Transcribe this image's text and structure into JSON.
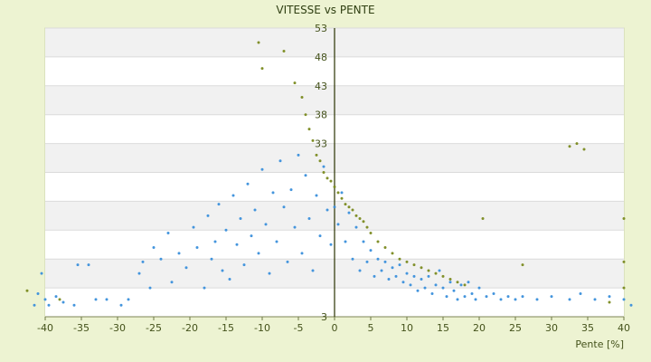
{
  "chart_data": {
    "type": "scatter",
    "title": "VITESSE vs PENTE",
    "xlabel": "Pente [%]",
    "ylabel": "",
    "xlim": [
      -40,
      40
    ],
    "ylim": [
      3,
      53
    ],
    "x_ticks": [
      -40,
      -35,
      -30,
      -25,
      -20,
      -15,
      -10,
      -5,
      0,
      5,
      10,
      15,
      20,
      25,
      30,
      35,
      40
    ],
    "y_ticks": [
      3,
      8,
      13,
      18,
      23,
      28,
      33,
      38,
      43,
      48,
      53
    ],
    "y_tick_labels": [
      "3",
      "",
      "",
      "",
      "",
      "",
      "33",
      "38",
      "43",
      "48",
      "53"
    ],
    "grid": true,
    "band_fill_colors": [
      "#ffffff",
      "#f1f1f1"
    ],
    "series": [
      {
        "color": "#3a8fdb",
        "points": [
          [
            -41.5,
            5.0
          ],
          [
            -41.0,
            7.0
          ],
          [
            -40.5,
            10.5
          ],
          [
            -40.0,
            6.0
          ],
          [
            -39.5,
            5.0
          ],
          [
            -38.5,
            6.5
          ],
          [
            -37.5,
            5.5
          ],
          [
            -36.0,
            5.0
          ],
          [
            -35.5,
            12.0
          ],
          [
            -34.0,
            12.0
          ],
          [
            -33.0,
            6.0
          ],
          [
            -31.5,
            6.0
          ],
          [
            -29.5,
            5.0
          ],
          [
            -28.5,
            6.0
          ],
          [
            -27.0,
            10.5
          ],
          [
            -26.5,
            12.5
          ],
          [
            -25.5,
            8.0
          ],
          [
            -25.0,
            15.0
          ],
          [
            -24.0,
            13.0
          ],
          [
            -23.0,
            17.5
          ],
          [
            -22.5,
            9.0
          ],
          [
            -21.5,
            14.0
          ],
          [
            -20.5,
            11.5
          ],
          [
            -19.5,
            18.5
          ],
          [
            -19.0,
            15.0
          ],
          [
            -18.0,
            8.0
          ],
          [
            -17.5,
            20.5
          ],
          [
            -17.0,
            13.0
          ],
          [
            -16.5,
            16.0
          ],
          [
            -16.0,
            22.5
          ],
          [
            -15.5,
            11.0
          ],
          [
            -15.0,
            18.0
          ],
          [
            -14.5,
            9.5
          ],
          [
            -14.0,
            24.0
          ],
          [
            -13.5,
            15.5
          ],
          [
            -13.0,
            20.0
          ],
          [
            -12.5,
            12.0
          ],
          [
            -12.0,
            26.0
          ],
          [
            -11.5,
            17.0
          ],
          [
            -11.0,
            21.5
          ],
          [
            -10.5,
            14.0
          ],
          [
            -10.0,
            28.5
          ],
          [
            -9.5,
            19.0
          ],
          [
            -9.0,
            10.5
          ],
          [
            -8.5,
            24.5
          ],
          [
            -8.0,
            16.0
          ],
          [
            -7.5,
            30.0
          ],
          [
            -7.0,
            22.0
          ],
          [
            -6.5,
            12.5
          ],
          [
            -6.0,
            25.0
          ],
          [
            -5.5,
            18.5
          ],
          [
            -5.0,
            31.0
          ],
          [
            -4.5,
            14.0
          ],
          [
            -4.0,
            27.5
          ],
          [
            -3.5,
            20.0
          ],
          [
            -3.0,
            11.0
          ],
          [
            -2.5,
            24.0
          ],
          [
            -2.0,
            17.0
          ],
          [
            -1.5,
            29.0
          ],
          [
            -1.0,
            21.5
          ],
          [
            -0.5,
            15.5
          ],
          [
            0.0,
            22.0
          ],
          [
            0.5,
            19.0
          ],
          [
            1.0,
            24.5
          ],
          [
            1.5,
            16.0
          ],
          [
            2.0,
            21.0
          ],
          [
            2.5,
            13.0
          ],
          [
            3.0,
            18.5
          ],
          [
            3.5,
            11.0
          ],
          [
            4.0,
            16.0
          ],
          [
            4.5,
            12.5
          ],
          [
            5.0,
            14.5
          ],
          [
            5.5,
            10.0
          ],
          [
            6.0,
            13.0
          ],
          [
            6.5,
            11.0
          ],
          [
            7.0,
            12.5
          ],
          [
            7.5,
            9.5
          ],
          [
            8.0,
            11.5
          ],
          [
            8.5,
            10.0
          ],
          [
            9.0,
            12.0
          ],
          [
            9.5,
            9.0
          ],
          [
            10.0,
            10.5
          ],
          [
            10.5,
            8.5
          ],
          [
            11.0,
            10.0
          ],
          [
            11.5,
            7.5
          ],
          [
            12.0,
            9.5
          ],
          [
            12.5,
            8.0
          ],
          [
            13.0,
            10.0
          ],
          [
            13.5,
            7.0
          ],
          [
            14.0,
            8.5
          ],
          [
            14.5,
            11.0
          ],
          [
            15.0,
            8.0
          ],
          [
            15.5,
            6.5
          ],
          [
            16.0,
            9.0
          ],
          [
            16.5,
            7.5
          ],
          [
            17.0,
            6.0
          ],
          [
            17.5,
            8.5
          ],
          [
            18.0,
            6.5
          ],
          [
            18.5,
            9.0
          ],
          [
            19.0,
            7.0
          ],
          [
            19.5,
            6.0
          ],
          [
            20.0,
            8.0
          ],
          [
            21.0,
            6.5
          ],
          [
            22.0,
            7.0
          ],
          [
            23.0,
            6.0
          ],
          [
            24.0,
            6.5
          ],
          [
            25.0,
            6.0
          ],
          [
            26.0,
            6.5
          ],
          [
            28.0,
            6.0
          ],
          [
            30.0,
            6.5
          ],
          [
            32.5,
            6.0
          ],
          [
            34.0,
            7.0
          ],
          [
            36.0,
            6.0
          ],
          [
            38.0,
            6.5
          ],
          [
            40.0,
            6.0
          ],
          [
            41.0,
            5.0
          ]
        ]
      },
      {
        "color": "#7a8a1f",
        "points": [
          [
            -42.5,
            7.5
          ],
          [
            -38.0,
            6.0
          ],
          [
            -10.5,
            50.5
          ],
          [
            -10.0,
            46.0
          ],
          [
            -7.0,
            49.0
          ],
          [
            -5.5,
            43.5
          ],
          [
            -4.5,
            41.0
          ],
          [
            -4.0,
            38.0
          ],
          [
            -3.5,
            35.5
          ],
          [
            -3.0,
            33.5
          ],
          [
            -2.5,
            31.0
          ],
          [
            -2.0,
            30.0
          ],
          [
            -1.5,
            28.0
          ],
          [
            -1.0,
            27.0
          ],
          [
            -0.5,
            26.5
          ],
          [
            0.0,
            25.5
          ],
          [
            0.5,
            24.5
          ],
          [
            1.0,
            23.5
          ],
          [
            1.5,
            22.5
          ],
          [
            2.0,
            22.0
          ],
          [
            2.5,
            21.5
          ],
          [
            3.0,
            20.5
          ],
          [
            3.5,
            20.0
          ],
          [
            4.0,
            19.5
          ],
          [
            4.5,
            18.5
          ],
          [
            5.0,
            17.5
          ],
          [
            6.0,
            16.0
          ],
          [
            7.0,
            15.0
          ],
          [
            8.0,
            14.0
          ],
          [
            9.0,
            13.0
          ],
          [
            10.0,
            12.5
          ],
          [
            11.0,
            12.0
          ],
          [
            12.0,
            11.5
          ],
          [
            13.0,
            11.0
          ],
          [
            14.0,
            10.5
          ],
          [
            15.0,
            10.0
          ],
          [
            16.0,
            9.5
          ],
          [
            17.0,
            9.0
          ],
          [
            18.0,
            8.5
          ],
          [
            20.5,
            20.0
          ],
          [
            26.0,
            12.0
          ],
          [
            32.5,
            32.5
          ],
          [
            33.5,
            33.0
          ],
          [
            34.5,
            32.0
          ],
          [
            40.0,
            20.0
          ],
          [
            40.0,
            12.5
          ],
          [
            40.0,
            8.0
          ],
          [
            38.0,
            5.5
          ]
        ]
      }
    ]
  }
}
